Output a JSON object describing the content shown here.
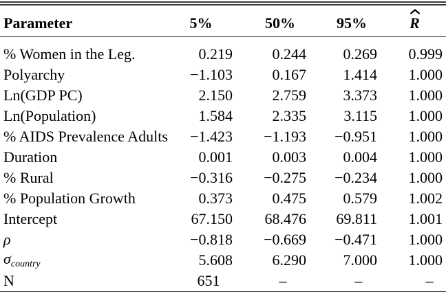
{
  "table": {
    "header": {
      "param": "Parameter",
      "col_5": "5%",
      "col_50": "50%",
      "col_95": "95%",
      "rhat_base": "R"
    },
    "rows": [
      {
        "label": "% Women in the Leg.",
        "values": [
          "0.219",
          "0.244",
          "0.269",
          "0.999"
        ]
      },
      {
        "label": "Polyarchy",
        "values": [
          "−1.103",
          "0.167",
          "1.414",
          "1.000"
        ]
      },
      {
        "label": "Ln(GDP PC)",
        "values": [
          "2.150",
          "2.759",
          "3.373",
          "1.000"
        ]
      },
      {
        "label": "Ln(Population)",
        "values": [
          "1.584",
          "2.335",
          "3.115",
          "1.000"
        ]
      },
      {
        "label": "% AIDS Prevalence Adults",
        "values": [
          "−1.423",
          "−1.193",
          "−0.951",
          "1.000"
        ]
      },
      {
        "label": "Duration",
        "values": [
          "0.001",
          "0.003",
          "0.004",
          "1.000"
        ]
      },
      {
        "label": "% Rural",
        "values": [
          "−0.316",
          "−0.275",
          "−0.234",
          "1.000"
        ]
      },
      {
        "label": "% Population Growth",
        "values": [
          "0.373",
          "0.475",
          "0.579",
          "1.002"
        ]
      },
      {
        "label": "Intercept",
        "values": [
          "67.150",
          "68.476",
          "69.811",
          "1.001"
        ]
      },
      {
        "label": "ρ",
        "label_style": "italic",
        "values": [
          "−0.818",
          "−0.669",
          "−0.471",
          "1.000"
        ]
      },
      {
        "label": "σ",
        "label_sub": "country",
        "label_style": "italic",
        "values": [
          "5.608",
          "6.290",
          "7.000",
          "1.000"
        ]
      },
      {
        "label": "N",
        "values": [
          "651",
          "–",
          "–",
          "–"
        ],
        "align": "center"
      }
    ]
  },
  "colors": {
    "background": "#ffffff",
    "text": "#000000",
    "rule": "#383838"
  }
}
